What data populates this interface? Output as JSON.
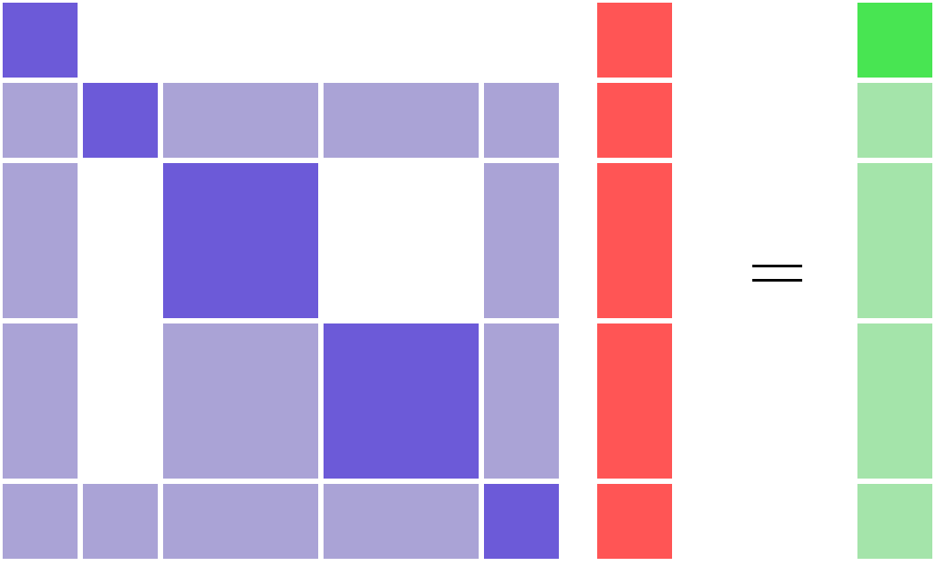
{
  "colors": {
    "background": "#ffffff",
    "matrix_highlight": "#6c5ad8",
    "matrix_light": "#aaa3d6",
    "vector_red": "#ff5555",
    "result_highlight": "#48e552",
    "result_light": "#a4e4aa",
    "equals": "#000000"
  },
  "diagram": {
    "symbol_name": "equals-sign",
    "block_sizes": [
      1,
      1,
      2,
      2,
      1
    ],
    "matrix": {
      "rows": [
        [
          "highlight",
          "empty",
          "empty",
          "empty",
          "empty"
        ],
        [
          "light",
          "highlight",
          "light",
          "light",
          "light"
        ],
        [
          "light",
          "empty",
          "highlight",
          "empty",
          "light"
        ],
        [
          "light",
          "empty",
          "light",
          "highlight",
          "light"
        ],
        [
          "light",
          "light",
          "light",
          "light",
          "highlight"
        ]
      ]
    },
    "vector_x": [
      "red",
      "red",
      "red",
      "red",
      "red"
    ],
    "vector_result": [
      "highlight",
      "light",
      "light",
      "light",
      "light"
    ]
  }
}
